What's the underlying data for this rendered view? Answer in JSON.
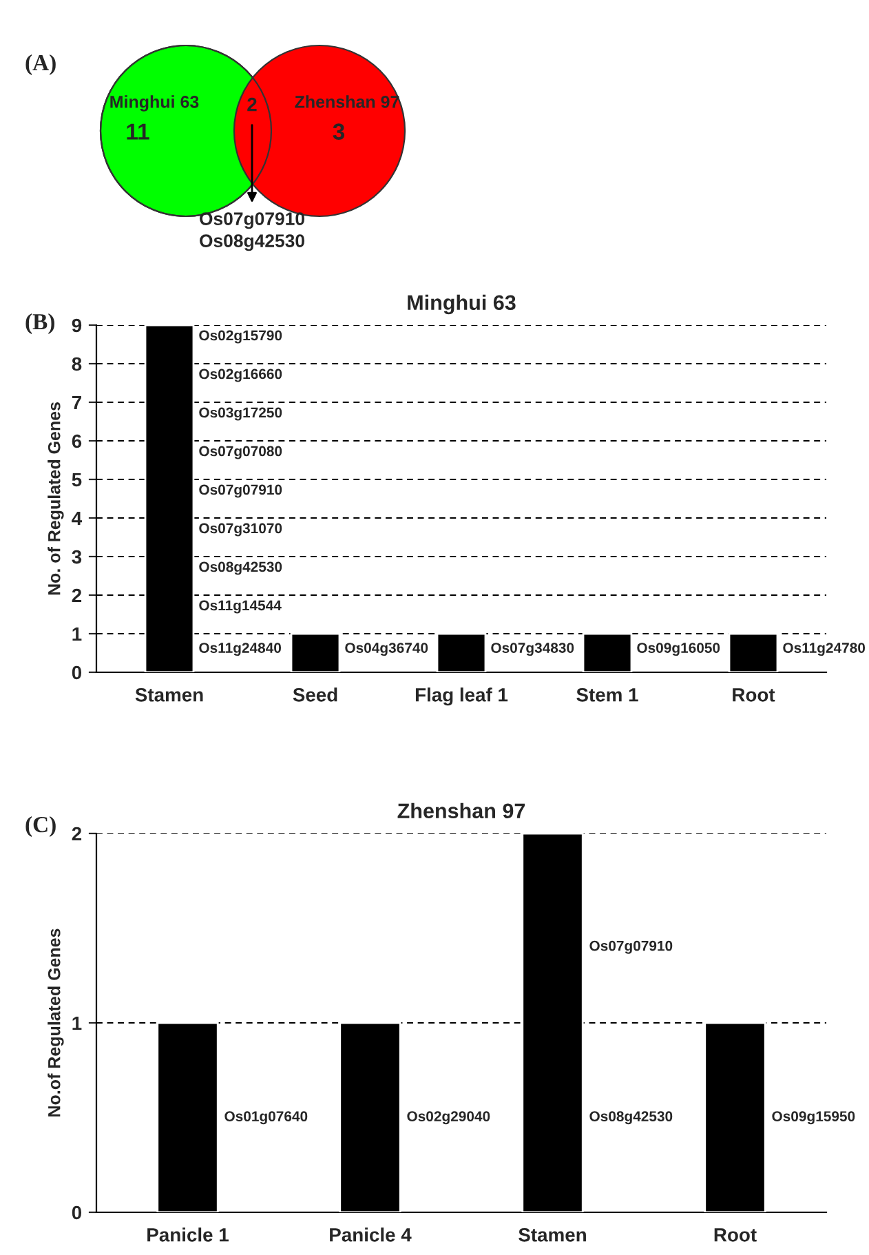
{
  "chart_data": [
    {
      "type": "other",
      "categories": [
        "Minghui 63",
        "Zhenshan 97"
      ],
      "values": [
        11,
        3
      ],
      "colors": [
        "#00ff00",
        "#ff0000"
      ],
      "data_labels": true,
      "annotations": [
        "(A)",
        "2",
        "Os07g07910",
        "Os08g42530"
      ]
    },
    {
      "type": "bar",
      "title": "Minghui 63",
      "ylabel": "No. of Regulated Genes",
      "categories": [
        "Stamen",
        "Seed",
        "Flag leaf 1",
        "Stem 1",
        "Root"
      ],
      "values": [
        9,
        1,
        1,
        1,
        1
      ],
      "color": "#000000",
      "ylim": [
        0,
        9
      ],
      "yticks": [
        0,
        1,
        2,
        3,
        4,
        5,
        6,
        7,
        8,
        9
      ],
      "grid": "y",
      "annotations": [
        "(B)",
        "Os02g15790",
        "Os02g16660",
        "Os03g17250",
        "Os07g07080",
        "Os07g07910",
        "Os07g31070",
        "Os08g42530",
        "Os11g14544",
        "Os11g24840",
        "Os04g36740",
        "Os07g34830",
        "Os09g16050",
        "Os11g24780"
      ]
    },
    {
      "type": "bar",
      "title": "Zhenshan 97",
      "ylabel": "No.of Regulated Genes",
      "categories": [
        "Panicle 1",
        "Panicle 4",
        "Stamen",
        "Root"
      ],
      "values": [
        1,
        1,
        2,
        1
      ],
      "color": "#000000",
      "ylim": [
        0,
        2
      ],
      "yticks": [
        0,
        1,
        2
      ],
      "grid": "y",
      "annotations": [
        "(C)",
        "Os01g07640",
        "Os02g29040",
        "Os07g07910",
        "Os08g42530",
        "Os09g15950"
      ]
    }
  ]
}
